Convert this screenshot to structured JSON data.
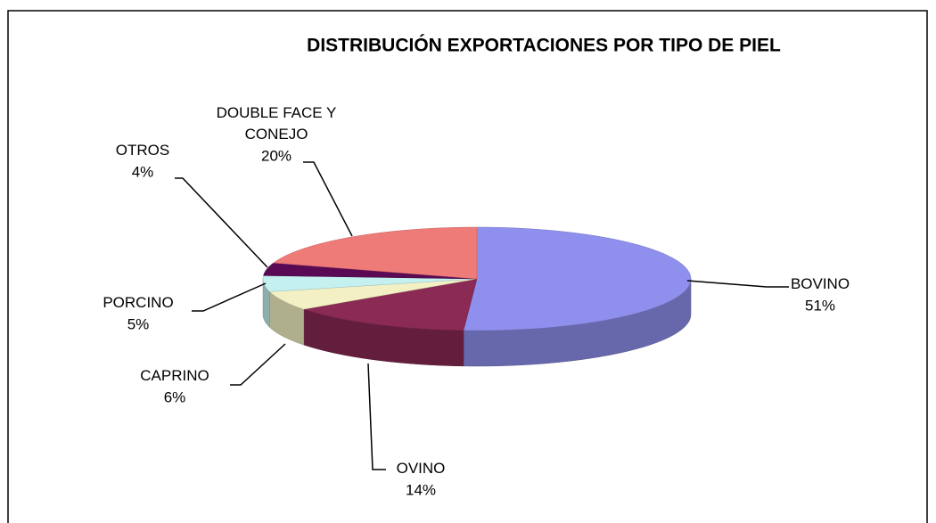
{
  "chart_data": {
    "type": "pie3d",
    "title": "DISTRIBUCIÓN EXPORTACIONES POR TIPO DE PIEL",
    "categories": [
      "BOVINO",
      "OVINO",
      "CAPRINO",
      "PORCINO",
      "OTROS",
      "DOUBLE FACE Y CONEJO"
    ],
    "values": [
      51,
      14,
      6,
      5,
      4,
      20
    ],
    "value_labels": [
      "51%",
      "14%",
      "6%",
      "5%",
      "4%",
      "20%"
    ],
    "colors": [
      "#8f8fee",
      "#8b2a55",
      "#f3f1c4",
      "#c5f0f0",
      "#5a0a55",
      "#ef7b78"
    ]
  }
}
